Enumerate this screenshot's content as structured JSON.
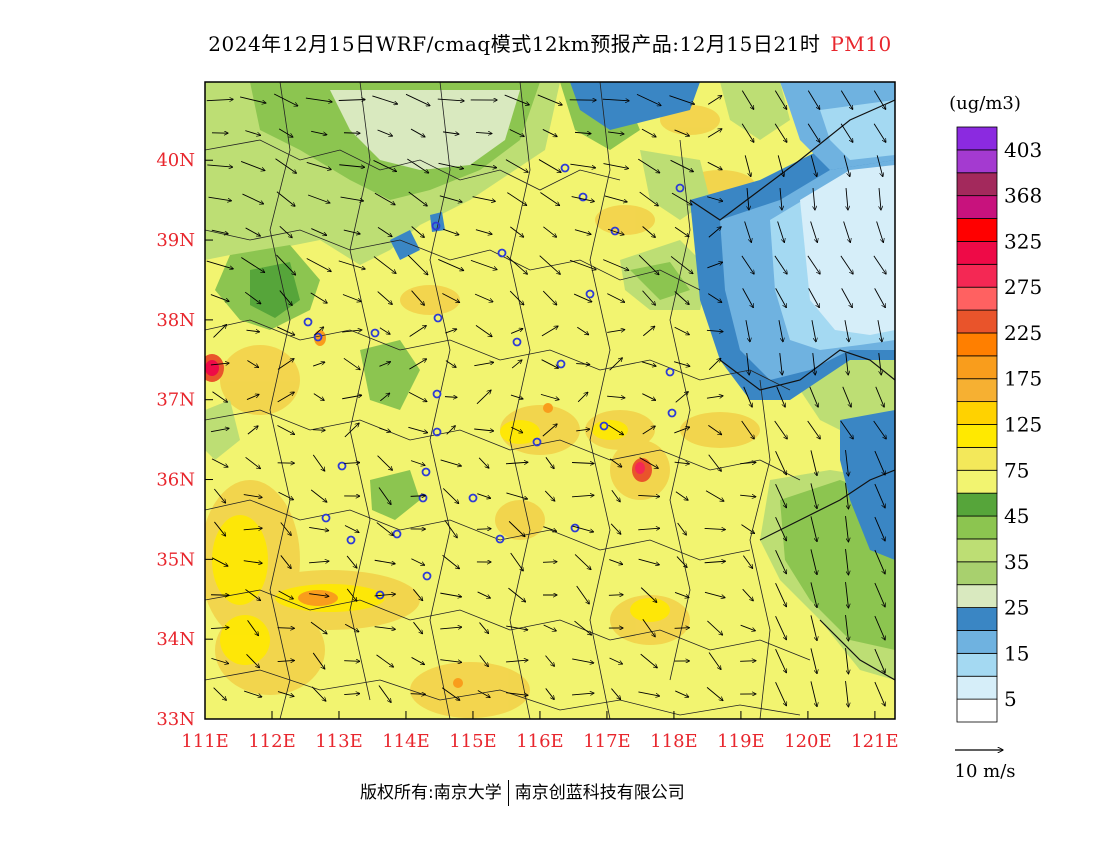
{
  "title": {
    "main": "2024年12月15日WRF/cmaq模式12km预报产品:12月15日21时",
    "variable": "PM10"
  },
  "axes": {
    "lon_labels": [
      "111E",
      "112E",
      "113E",
      "114E",
      "115E",
      "116E",
      "117E",
      "118E",
      "119E",
      "120E",
      "121E"
    ],
    "lat_labels": [
      "40N",
      "39N",
      "38N",
      "37N",
      "36N",
      "35N",
      "34N",
      "33N"
    ],
    "lon_range": [
      111,
      121.3
    ],
    "lat_range": [
      33,
      40.98
    ]
  },
  "legend": {
    "unit": "(ug/m3)",
    "boxes": [
      {
        "color": "#ffffff"
      },
      {
        "color": "#d6eef9"
      },
      {
        "color": "#a4d9f2"
      },
      {
        "color": "#6fb2e0"
      },
      {
        "color": "#3a86c4"
      },
      {
        "color": "#d9e9bf"
      },
      {
        "color": "#a8d06e"
      },
      {
        "color": "#bdde74"
      },
      {
        "color": "#8cc550"
      },
      {
        "color": "#56a53a"
      },
      {
        "color": "#f2f470"
      },
      {
        "color": "#f3e85a"
      },
      {
        "color": "#ffe900"
      },
      {
        "color": "#ffd200"
      },
      {
        "color": "#f6b032"
      },
      {
        "color": "#f99d1c"
      },
      {
        "color": "#ff7f00"
      },
      {
        "color": "#e9542b"
      },
      {
        "color": "#ff6161"
      },
      {
        "color": "#f42854"
      },
      {
        "color": "#ee0a47"
      },
      {
        "color": "#ff0000"
      },
      {
        "color": "#c8127d"
      },
      {
        "color": "#a3295c"
      },
      {
        "color": "#a43ad0"
      },
      {
        "color": "#8b2ae0"
      }
    ],
    "labels": [
      "5",
      "15",
      "25",
      "35",
      "45",
      "75",
      "125",
      "175",
      "225",
      "275",
      "325",
      "368",
      "403"
    ]
  },
  "wind_reference": {
    "label": "10 m/s"
  },
  "footer": {
    "left": "版权所有:南京大学",
    "right": "南京创蓝科技有限公司"
  },
  "map_colors": {
    "base": "#f2f470",
    "yellow_deep": "#ffe900",
    "orange": "#f3d24a",
    "green_light": "#bdde74",
    "green": "#8cc550",
    "green_dark": "#56a53a",
    "pale_green": "#d9e9bf",
    "blue_dark": "#3a86c4",
    "blue": "#6fb2e0",
    "blue_light": "#a4d9f2",
    "blue_pale": "#d6eef9",
    "hotspot": "#e9542b",
    "hotspot_core": "#f42854",
    "city": "#2d3bd6"
  }
}
